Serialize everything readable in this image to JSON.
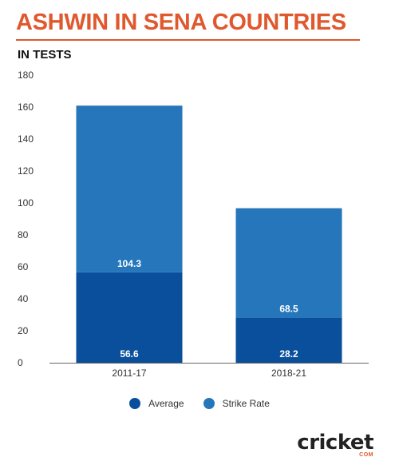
{
  "title": "ASHWIN IN SENA COUNTRIES",
  "subtitle": "IN TESTS",
  "colors": {
    "accent": "#e0582d",
    "average": "#0a4f9b",
    "strike_rate": "#2576ba"
  },
  "brand": {
    "logo_text": "cricket",
    "logo_sub": "COM"
  },
  "chart_data": {
    "type": "bar",
    "stacked": true,
    "categories": [
      "2011-17",
      "2018-21"
    ],
    "series": [
      {
        "name": "Average",
        "values": [
          56.6,
          28.2
        ],
        "color": "#0a4f9b"
      },
      {
        "name": "Strike Rate",
        "values": [
          104.3,
          68.5
        ],
        "color": "#2576ba"
      }
    ],
    "ylim": [
      0,
      180
    ],
    "yticks": [
      0,
      20,
      40,
      60,
      80,
      100,
      120,
      140,
      160,
      180
    ],
    "grid": false,
    "legend": "bottom"
  }
}
